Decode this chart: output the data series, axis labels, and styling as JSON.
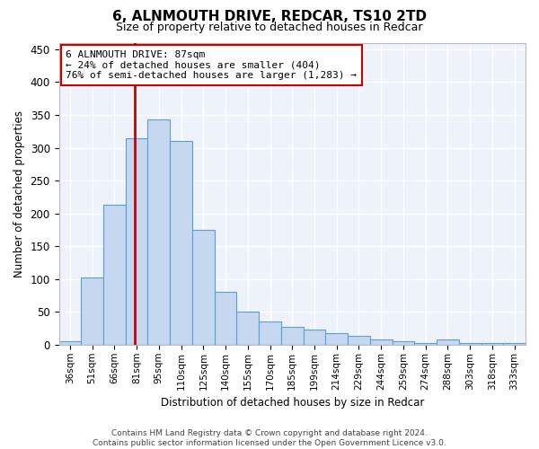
{
  "title": "6, ALNMOUTH DRIVE, REDCAR, TS10 2TD",
  "subtitle": "Size of property relative to detached houses in Redcar",
  "xlabel": "Distribution of detached houses by size in Redcar",
  "ylabel": "Number of detached properties",
  "bar_color": "#c5d8f0",
  "bar_edge_color": "#5a9fd4",
  "background_color": "#ffffff",
  "plot_bg_color": "#eef2fb",
  "grid_color": "#ffffff",
  "vline_color": "#cc0000",
  "annotation_text": "6 ALNMOUTH DRIVE: 87sqm\n← 24% of detached houses are smaller (404)\n76% of semi-detached houses are larger (1,283) →",
  "annotation_box_color": "#cc0000",
  "footnote1": "Contains HM Land Registry data © Crown copyright and database right 2024.",
  "footnote2": "Contains public sector information licensed under the Open Government Licence v3.0.",
  "bin_labels": [
    "36sqm",
    "51sqm",
    "66sqm",
    "81sqm",
    "95sqm",
    "110sqm",
    "125sqm",
    "140sqm",
    "155sqm",
    "170sqm",
    "185sqm",
    "199sqm",
    "214sqm",
    "229sqm",
    "244sqm",
    "259sqm",
    "274sqm",
    "288sqm",
    "303sqm",
    "318sqm",
    "333sqm"
  ],
  "counts": [
    5,
    103,
    213,
    315,
    343,
    310,
    175,
    80,
    50,
    35,
    27,
    23,
    18,
    13,
    8,
    5,
    3,
    8,
    3,
    3,
    2
  ],
  "ylim": [
    0,
    460
  ],
  "yticks": [
    0,
    50,
    100,
    150,
    200,
    250,
    300,
    350,
    400,
    450
  ],
  "property_sqm": 87,
  "bin_starts": [
    36,
    51,
    66,
    81,
    95,
    110,
    125,
    140,
    155,
    170,
    185,
    199,
    214,
    229,
    244,
    259,
    274,
    288,
    303,
    318,
    333
  ]
}
